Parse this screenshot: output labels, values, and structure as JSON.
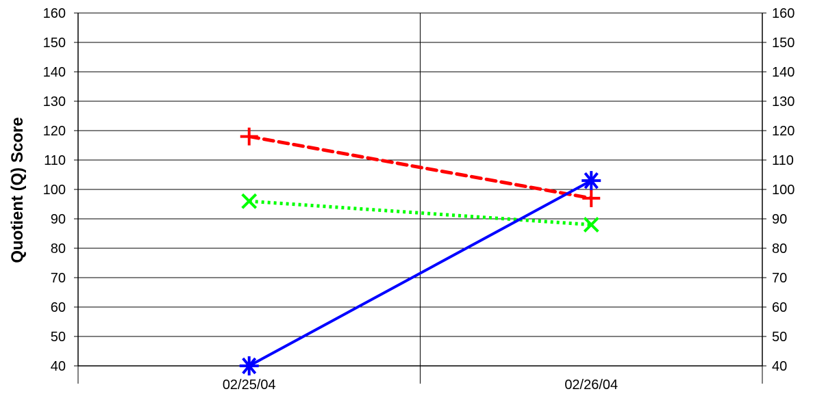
{
  "chart_data": {
    "type": "line",
    "title": "",
    "xlabel": "",
    "ylabel": "Quotient (Q) Score",
    "ylim": [
      40,
      160
    ],
    "yticks": [
      40,
      50,
      60,
      70,
      80,
      90,
      100,
      110,
      120,
      130,
      140,
      150,
      160
    ],
    "y_axis_mirrored_right": true,
    "grid": "horizontal and vertical",
    "legend": "none",
    "categories": [
      "02/25/04",
      "02/26/04"
    ],
    "series": [
      {
        "values": [
          118,
          97
        ],
        "color": "#ff0000",
        "line_style": "dashed",
        "marker": "plus"
      },
      {
        "values": [
          96,
          88
        ],
        "color": "#00ff00",
        "line_style": "dotted",
        "marker": "x"
      },
      {
        "values": [
          40,
          103
        ],
        "color": "#0000ff",
        "line_style": "solid",
        "marker": "asterisk"
      }
    ]
  }
}
